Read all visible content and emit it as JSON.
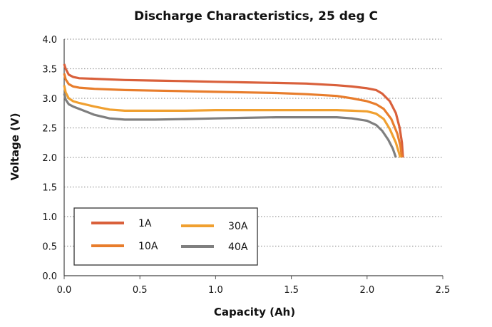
{
  "chart_data": {
    "type": "line",
    "title": "Discharge Characteristics, 25 deg C",
    "xlabel": "Capacity (Ah)",
    "ylabel": "Voltage (V)",
    "xlim": [
      0,
      2.5
    ],
    "ylim": [
      0,
      4.0
    ],
    "x_ticks": [
      "0.0",
      "0.5",
      "1.0",
      "1.5",
      "2.0",
      "2.5"
    ],
    "y_ticks": [
      "0.0",
      "0.5",
      "1.0",
      "1.5",
      "2.0",
      "2.5",
      "3.0",
      "3.5",
      "4.0"
    ],
    "grid": "horizontal-dotted",
    "legend_position": "lower-left",
    "series": [
      {
        "name": "1A",
        "color": "#d9603b",
        "points": [
          [
            0.0,
            3.58
          ],
          [
            0.01,
            3.5
          ],
          [
            0.03,
            3.4
          ],
          [
            0.06,
            3.36
          ],
          [
            0.1,
            3.34
          ],
          [
            0.2,
            3.33
          ],
          [
            0.4,
            3.31
          ],
          [
            0.6,
            3.3
          ],
          [
            0.8,
            3.29
          ],
          [
            1.0,
            3.28
          ],
          [
            1.2,
            3.27
          ],
          [
            1.4,
            3.26
          ],
          [
            1.6,
            3.25
          ],
          [
            1.8,
            3.22
          ],
          [
            1.9,
            3.2
          ],
          [
            2.0,
            3.17
          ],
          [
            2.06,
            3.14
          ],
          [
            2.1,
            3.08
          ],
          [
            2.15,
            2.95
          ],
          [
            2.19,
            2.75
          ],
          [
            2.215,
            2.5
          ],
          [
            2.23,
            2.25
          ],
          [
            2.237,
            2.0
          ]
        ]
      },
      {
        "name": "10A",
        "color": "#e87d2c",
        "points": [
          [
            0.0,
            3.42
          ],
          [
            0.01,
            3.32
          ],
          [
            0.03,
            3.24
          ],
          [
            0.06,
            3.2
          ],
          [
            0.1,
            3.18
          ],
          [
            0.2,
            3.16
          ],
          [
            0.4,
            3.14
          ],
          [
            0.6,
            3.13
          ],
          [
            0.8,
            3.12
          ],
          [
            1.0,
            3.11
          ],
          [
            1.2,
            3.1
          ],
          [
            1.4,
            3.09
          ],
          [
            1.6,
            3.07
          ],
          [
            1.8,
            3.04
          ],
          [
            1.9,
            3.0
          ],
          [
            2.0,
            2.95
          ],
          [
            2.06,
            2.9
          ],
          [
            2.11,
            2.82
          ],
          [
            2.16,
            2.65
          ],
          [
            2.2,
            2.4
          ],
          [
            2.22,
            2.2
          ],
          [
            2.23,
            2.0
          ]
        ]
      },
      {
        "name": "30A",
        "color": "#f0a030",
        "points": [
          [
            0.0,
            3.22
          ],
          [
            0.01,
            3.1
          ],
          [
            0.03,
            3.0
          ],
          [
            0.06,
            2.95
          ],
          [
            0.1,
            2.92
          ],
          [
            0.2,
            2.86
          ],
          [
            0.3,
            2.81
          ],
          [
            0.4,
            2.79
          ],
          [
            0.6,
            2.79
          ],
          [
            0.8,
            2.79
          ],
          [
            1.0,
            2.8
          ],
          [
            1.2,
            2.8
          ],
          [
            1.4,
            2.8
          ],
          [
            1.6,
            2.8
          ],
          [
            1.8,
            2.8
          ],
          [
            1.9,
            2.79
          ],
          [
            2.0,
            2.78
          ],
          [
            2.06,
            2.74
          ],
          [
            2.11,
            2.65
          ],
          [
            2.15,
            2.48
          ],
          [
            2.19,
            2.25
          ],
          [
            2.22,
            2.0
          ]
        ]
      },
      {
        "name": "40A",
        "color": "#7f7f7f",
        "points": [
          [
            0.0,
            3.08
          ],
          [
            0.01,
            2.98
          ],
          [
            0.03,
            2.9
          ],
          [
            0.06,
            2.86
          ],
          [
            0.1,
            2.82
          ],
          [
            0.2,
            2.72
          ],
          [
            0.3,
            2.66
          ],
          [
            0.4,
            2.64
          ],
          [
            0.6,
            2.64
          ],
          [
            0.8,
            2.65
          ],
          [
            1.0,
            2.66
          ],
          [
            1.2,
            2.67
          ],
          [
            1.4,
            2.68
          ],
          [
            1.6,
            2.68
          ],
          [
            1.8,
            2.68
          ],
          [
            1.9,
            2.66
          ],
          [
            2.0,
            2.62
          ],
          [
            2.06,
            2.55
          ],
          [
            2.1,
            2.45
          ],
          [
            2.14,
            2.3
          ],
          [
            2.17,
            2.15
          ],
          [
            2.19,
            2.0
          ]
        ]
      }
    ]
  }
}
